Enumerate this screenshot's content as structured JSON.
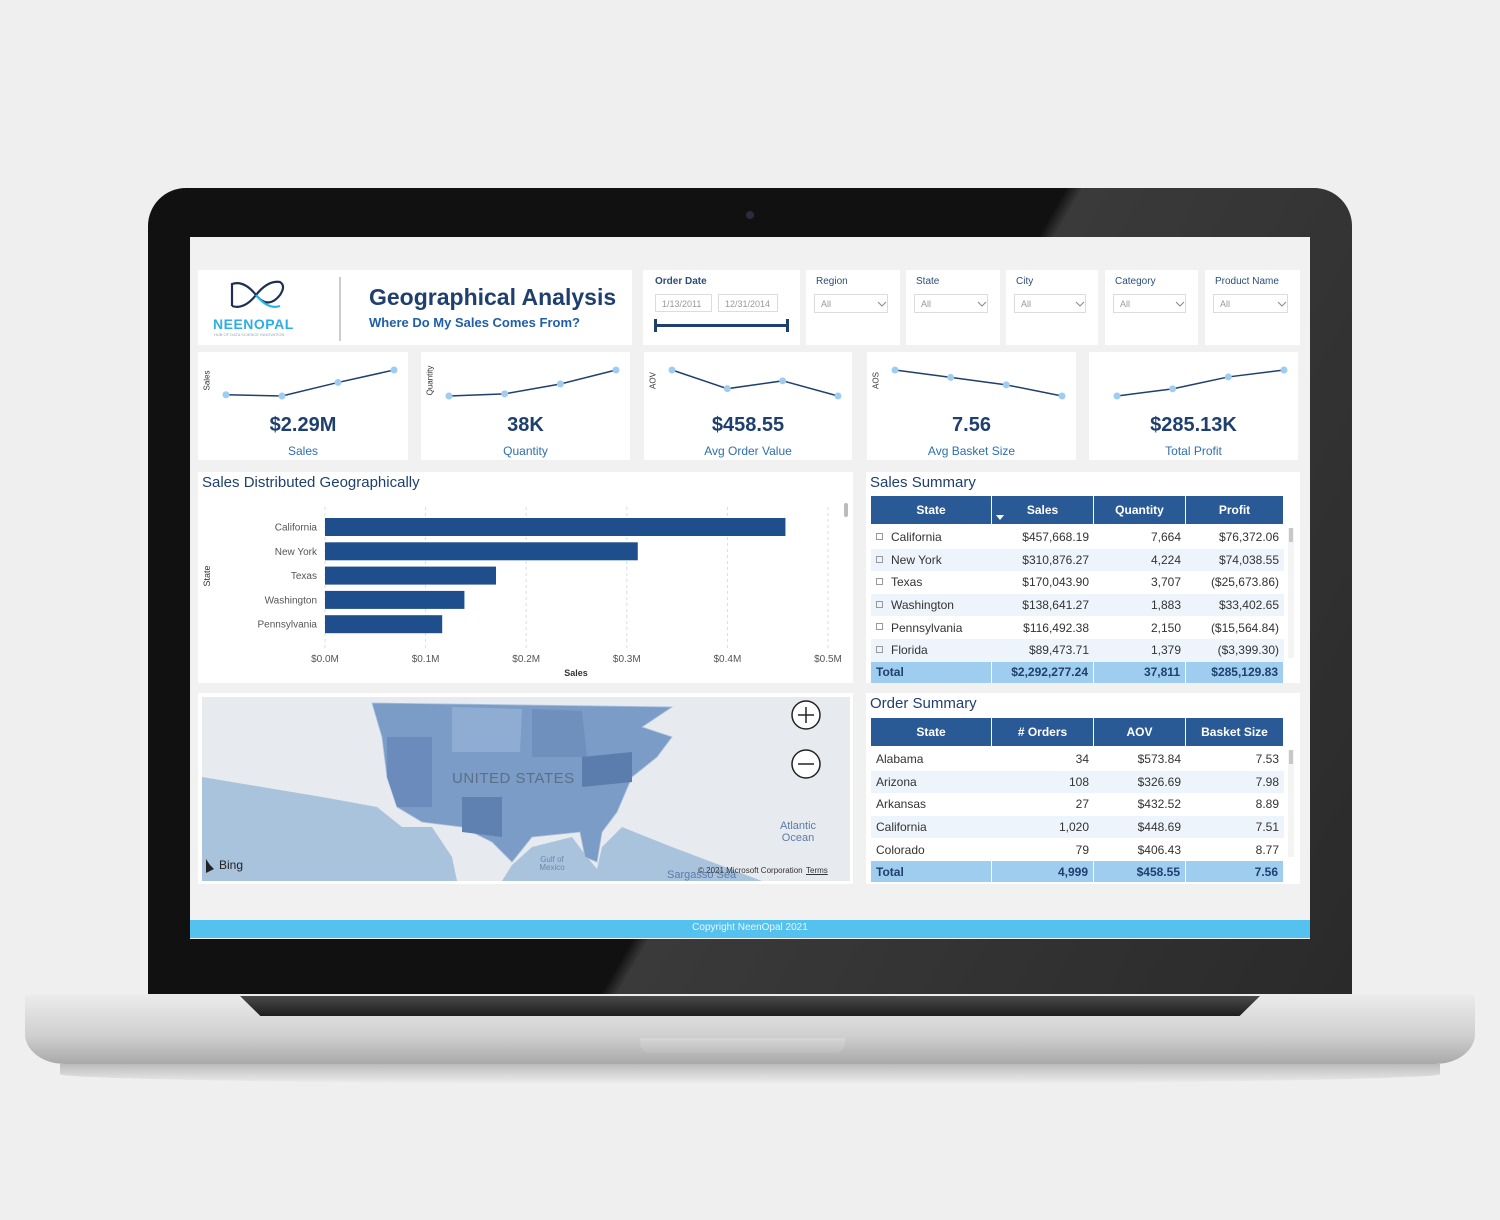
{
  "header": {
    "logo_name": "NEENOPAL",
    "logo_tagline": "HUB OF DATA SCIENCE INNOVATION",
    "title": "Geographical Analysis",
    "subtitle": "Where Do My Sales Comes From?"
  },
  "filters": {
    "order_date": {
      "label": "Order Date",
      "start": "1/13/2011",
      "end": "12/31/2014"
    },
    "slicers": [
      {
        "label": "Region",
        "value": "All"
      },
      {
        "label": "State",
        "value": "All"
      },
      {
        "label": "City",
        "value": "All"
      },
      {
        "label": "Category",
        "value": "All"
      },
      {
        "label": "Product Name",
        "value": "All"
      }
    ]
  },
  "kpis": [
    {
      "axis_label": "Sales",
      "value": "$2.29M",
      "label": "Sales",
      "trend": [
        0.484,
        0.471,
        0.608,
        0.734
      ]
    },
    {
      "axis_label": "Quantity",
      "value": "38K",
      "label": "Quantity",
      "trend": [
        7.58,
        7.98,
        9.84,
        12.48
      ]
    },
    {
      "axis_label": "AOV",
      "value": "$458.55",
      "label": "Avg Order Value",
      "trend": [
        499.7,
        453.3,
        472.8,
        435.1
      ]
    },
    {
      "axis_label": "AOS",
      "value": "7.56",
      "label": "Avg Basket Size",
      "trend": [
        7.8,
        7.7,
        7.6,
        7.45
      ]
    },
    {
      "value": "$285.13K",
      "label": "Total Profit",
      "trend": [
        49.5,
        61.6,
        81.7,
        93.4
      ]
    }
  ],
  "chart_data": {
    "type": "bar",
    "orientation": "horizontal",
    "title": "Sales Distributed Geographically",
    "x_label": "Sales",
    "y_label": "State",
    "categories": [
      "California",
      "New York",
      "Texas",
      "Washington",
      "Pennsylvania"
    ],
    "values": [
      0.4577,
      0.3109,
      0.17,
      0.1386,
      0.1165
    ],
    "color": "#1f4e8c",
    "xlim": [
      0,
      0.5
    ],
    "xticks": [
      {
        "value": 0,
        "label": "$0.0M"
      },
      {
        "value": 0.1,
        "label": "$0.1M"
      },
      {
        "value": 0.2,
        "label": "$0.2M"
      },
      {
        "value": 0.3,
        "label": "$0.3M"
      },
      {
        "value": 0.4,
        "label": "$0.4M"
      },
      {
        "value": 0.5,
        "label": "$0.5M"
      }
    ],
    "grid": true
  },
  "sales_summary": {
    "title": "Sales Summary",
    "columns": [
      "State",
      "Sales",
      "Quantity",
      "Profit"
    ],
    "rows": [
      [
        "California",
        "$457,668.19",
        "7,664",
        "$76,372.06"
      ],
      [
        "New York",
        "$310,876.27",
        "4,224",
        "$74,038.55"
      ],
      [
        "Texas",
        "$170,043.90",
        "3,707",
        "($25,673.86)"
      ],
      [
        "Washington",
        "$138,641.27",
        "1,883",
        "$33,402.65"
      ],
      [
        "Pennsylvania",
        "$116,492.38",
        "2,150",
        "($15,564.84)"
      ],
      [
        "Florida",
        "$89,473.71",
        "1,379",
        "($3,399.30)"
      ]
    ],
    "total": [
      "Total",
      "$2,292,277.24",
      "37,811",
      "$285,129.83"
    ]
  },
  "order_summary": {
    "title": "Order Summary",
    "columns": [
      "State",
      "# Orders",
      "AOV",
      "Basket Size"
    ],
    "rows": [
      [
        "Alabama",
        "34",
        "$573.84",
        "7.53"
      ],
      [
        "Arizona",
        "108",
        "$326.69",
        "7.98"
      ],
      [
        "Arkansas",
        "27",
        "$432.52",
        "8.89"
      ],
      [
        "California",
        "1,020",
        "$448.69",
        "7.51"
      ],
      [
        "Colorado",
        "79",
        "$406.43",
        "8.77"
      ]
    ],
    "total": [
      "Total",
      "4,999",
      "$458.55",
      "7.56"
    ]
  },
  "map": {
    "country": "UNITED STATES",
    "ocean": "Atlantic Ocean",
    "gulf": "Gulf of Mexico",
    "sea": "Sargasso Sea",
    "copyright": "© 2021 Microsoft Corporation",
    "terms": "Terms",
    "provider": "Bing"
  },
  "footer": "Copyright NeenOpal 2021"
}
